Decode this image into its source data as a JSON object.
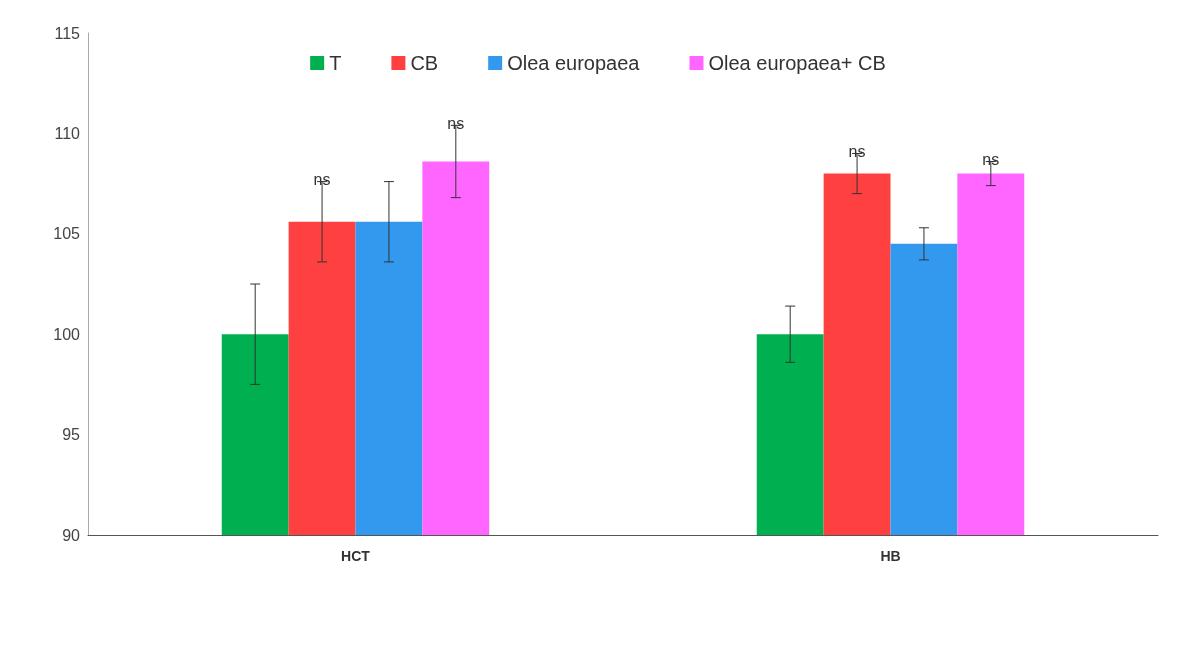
{
  "chart_data": {
    "type": "bar",
    "categories": [
      "HCT",
      "HB"
    ],
    "series": [
      {
        "name": "T",
        "color": "#00b050",
        "values": [
          100,
          100
        ],
        "errors": [
          2.5,
          1.4
        ]
      },
      {
        "name": "CB",
        "color": "#ff4040",
        "values": [
          105.6,
          108.0
        ],
        "errors": [
          2.0,
          1.0
        ],
        "value_labels": [
          "ns",
          "ns"
        ]
      },
      {
        "name": "Olea europaea",
        "color": "#3399ee",
        "values": [
          105.6,
          104.5
        ],
        "errors": [
          2.0,
          0.8
        ]
      },
      {
        "name": "Olea europaea+ CB",
        "color": "#ff66ff",
        "values": [
          108.6,
          108.0
        ],
        "errors": [
          1.8,
          0.6
        ],
        "value_labels": [
          "ns",
          "ns"
        ]
      }
    ],
    "ylim": [
      90,
      115
    ],
    "yticks": [
      90,
      95,
      100,
      105,
      110,
      115
    ],
    "grid": false,
    "legend": "top"
  }
}
